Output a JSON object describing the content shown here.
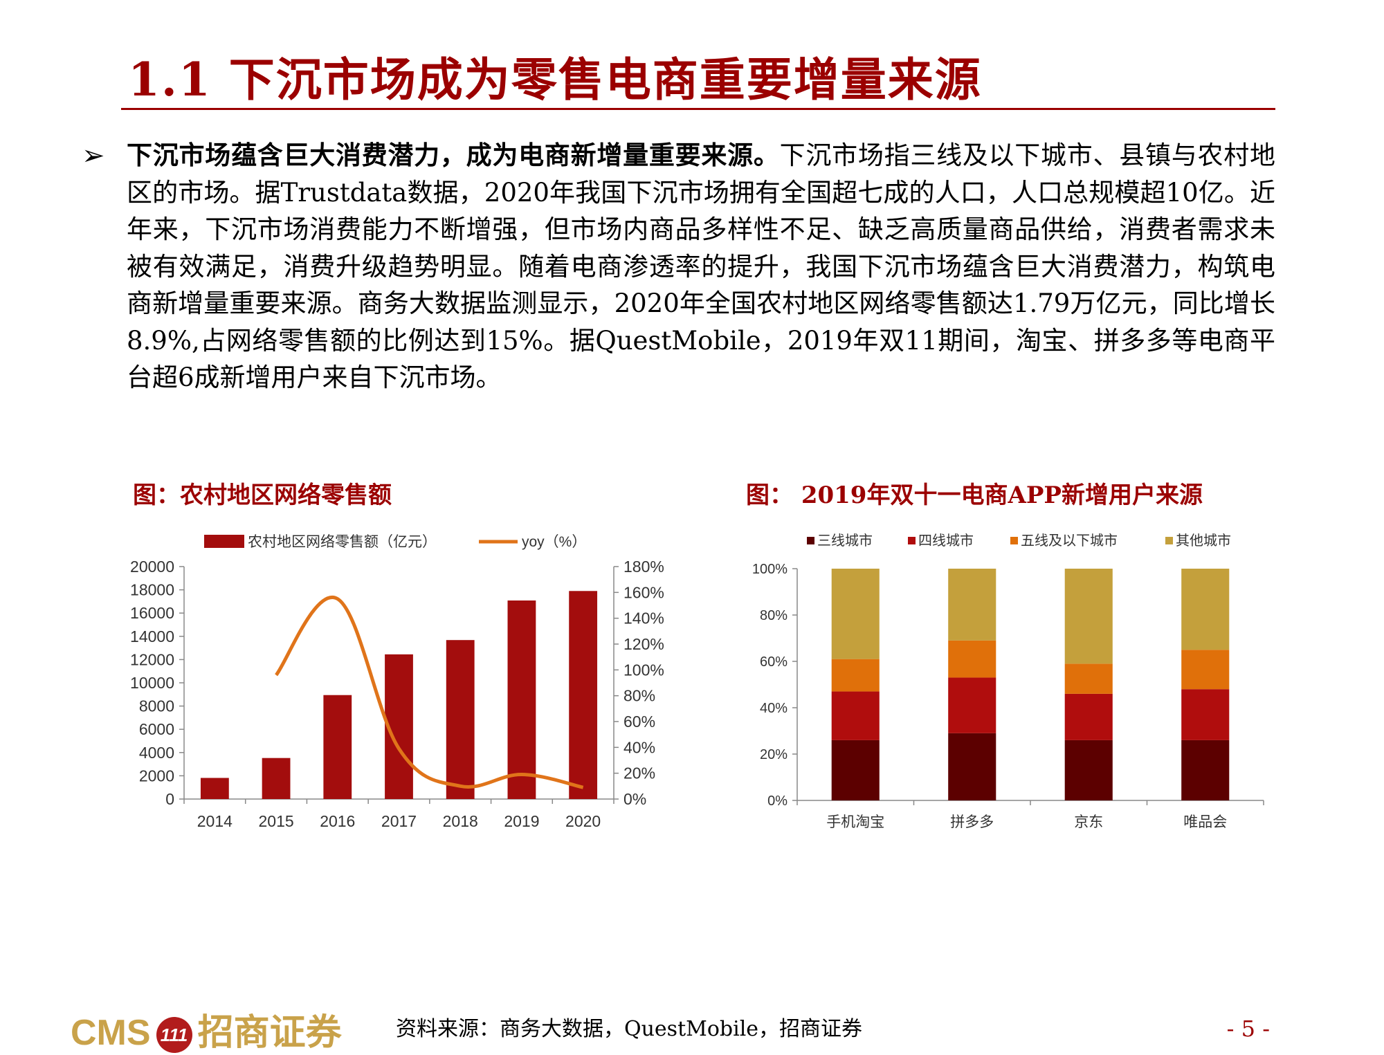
{
  "page": {
    "title": "1.1 下沉市场成为零售电商重要增量来源",
    "bullet_symbol": "➢",
    "para_bold": "下沉市场蕴含巨大消费潜力，成为电商新增量重要来源。",
    "para_rest": "下沉市场指三线及以下城市、县镇与农村地区的市场。据Trustdata数据，2020年我国下沉市场拥有全国超七成的人口，人口总规模超10亿。近年来，下沉市场消费能力不断增强，但市场内商品多样性不足、缺乏高质量商品供给，消费者需求未被有效满足，消费升级趋势明显。随着电商渗透率的提升，我国下沉市场蕴含巨大消费潜力，构筑电商新增量重要来源。商务大数据监测显示，2020年全国农村地区网络零售额达1.79万亿元，同比增长8.9%,占网络零售额的比例达到15%。据QuestMobile，2019年双11期间，淘宝、拼多多等电商平台超6成新增用户来自下沉市场。",
    "fig1_title": "图：农村地区网络零售额",
    "fig2_title": "图： 2019年双十一电商APP新增用户来源",
    "footer": {
      "logo_text": "CMS",
      "logo_badge": "111",
      "logo_cn": "招商证券",
      "source": "资料来源：商务大数据，QuestMobile，招商证券",
      "page_number": "- 5 -"
    }
  },
  "chart_data": [
    {
      "type": "bar",
      "categories": [
        "2014",
        "2015",
        "2016",
        "2017",
        "2018",
        "2019",
        "2020"
      ],
      "series": [
        {
          "name": "农村地区网络零售额（亿元）",
          "type": "bar",
          "axis": "left",
          "values": [
            1817,
            3530,
            8945,
            12448,
            13679,
            17083,
            17900
          ],
          "color": "#a30d0d"
        },
        {
          "name": "yoy（%）",
          "type": "line",
          "axis": "right",
          "values": [
            null,
            96,
            155,
            39,
            10,
            19,
            9
          ],
          "color": "#e0741a"
        }
      ],
      "ylim_left": [
        0,
        20000
      ],
      "yticks_left": [
        0,
        2000,
        4000,
        6000,
        8000,
        10000,
        12000,
        14000,
        16000,
        18000,
        20000
      ],
      "ylim_right": [
        0,
        180
      ],
      "yticks_right": [
        "0%",
        "20%",
        "40%",
        "60%",
        "80%",
        "100%",
        "120%",
        "140%",
        "160%",
        "180%"
      ],
      "grid": false,
      "legend": "top"
    },
    {
      "type": "bar",
      "stacked": true,
      "categories": [
        "手机淘宝",
        "拼多多",
        "京东",
        "唯品会"
      ],
      "series": [
        {
          "name": "三线城市",
          "values": [
            26,
            29,
            26,
            26
          ],
          "color": "#5c0000"
        },
        {
          "name": "四线城市",
          "values": [
            21,
            24,
            20,
            22
          ],
          "color": "#b00d0d"
        },
        {
          "name": "五线及以下城市",
          "values": [
            14,
            16,
            13,
            17
          ],
          "color": "#e0700a"
        },
        {
          "name": "其他城市",
          "values": [
            39,
            31,
            41,
            35
          ],
          "color": "#c4a03c"
        }
      ],
      "ylim": [
        0,
        100
      ],
      "yticks": [
        "0%",
        "20%",
        "40%",
        "60%",
        "80%",
        "100%"
      ],
      "grid": false,
      "legend": "top"
    }
  ]
}
